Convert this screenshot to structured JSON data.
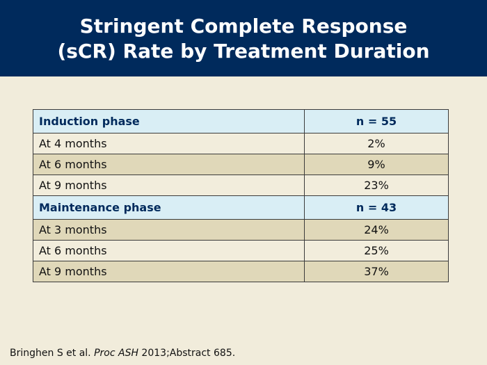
{
  "header": {
    "title_line1": "Stringent Complete Response",
    "title_line2": "(sCR) Rate by Treatment Duration"
  },
  "table": {
    "sections": [
      {
        "label": "Induction phase",
        "n": "n = 55",
        "rows": [
          {
            "label": "At 4 months",
            "value": "2%"
          },
          {
            "label": "At 6 months",
            "value": "9%"
          },
          {
            "label": "At 9 months",
            "value": "23%"
          }
        ]
      },
      {
        "label": "Maintenance phase",
        "n": "n = 43",
        "rows": [
          {
            "label": "At 3 months",
            "value": "24%"
          },
          {
            "label": "At 6 months",
            "value": "25%"
          },
          {
            "label": "At 9 months",
            "value": "37%"
          }
        ]
      }
    ]
  },
  "citation": {
    "authors": "Bringhen S et al. ",
    "journal": "Proc ASH",
    "rest": " 2013;Abstract 685."
  },
  "colors": {
    "header_bg": "#002a5c",
    "page_bg": "#f1ecdb",
    "section_header_bg": "#d9eef5",
    "row_light": "#f2eddc",
    "row_dark": "#e0d8b9"
  }
}
